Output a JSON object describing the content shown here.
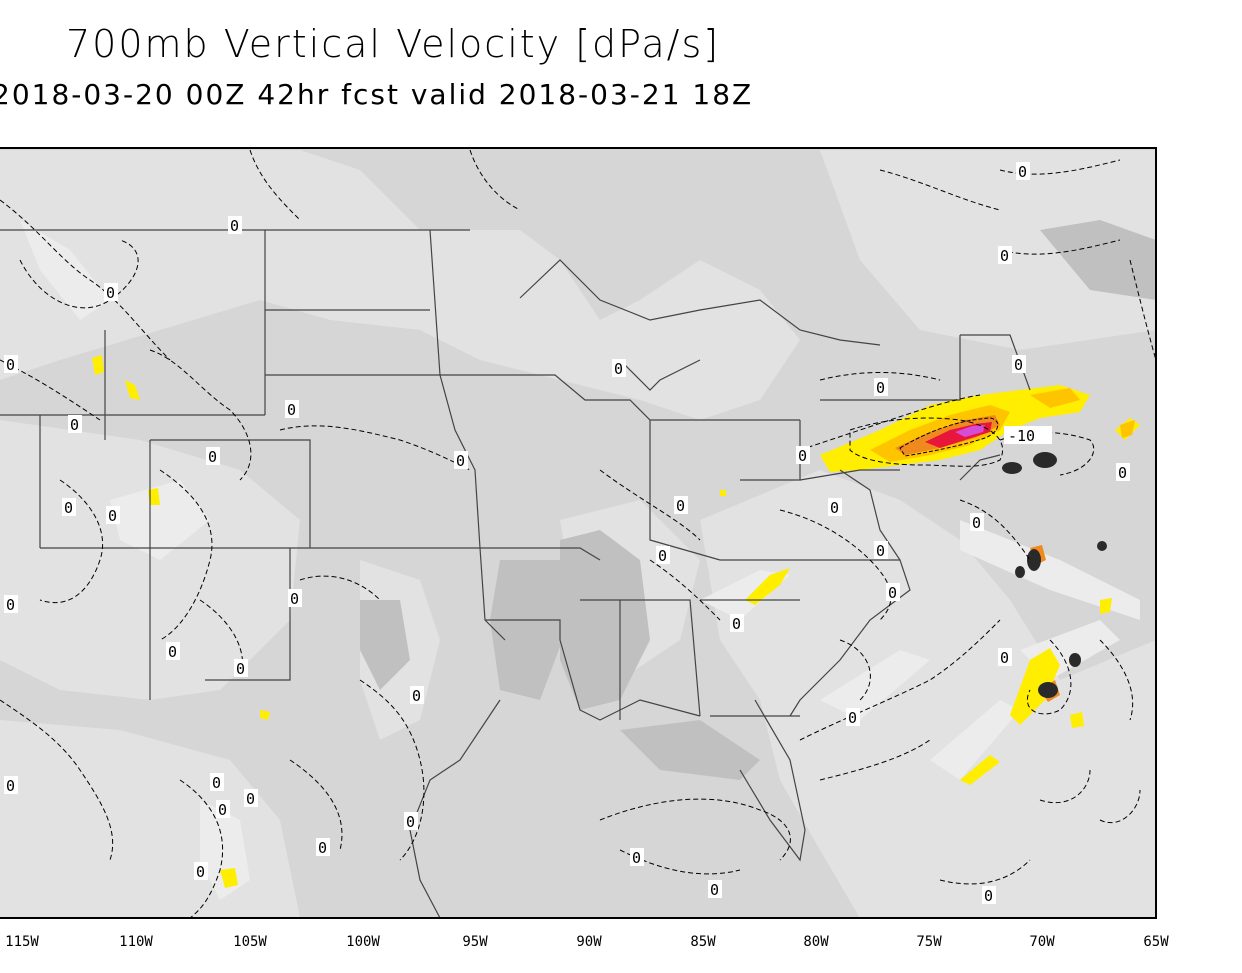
{
  "header": {
    "title": "700mb Vertical Velocity [dPa/s]",
    "subtitle": "2018-03-20 00Z 42hr fcst valid 2018-03-21 18Z"
  },
  "map": {
    "longitude_labels": [
      "115W",
      "110W",
      "105W",
      "100W",
      "95W",
      "90W",
      "85W",
      "80W",
      "75W",
      "70W",
      "65W"
    ],
    "contour_labels": {
      "zero": "0",
      "minus_ten": "-10"
    },
    "colors": {
      "ocean_light": "#e4e4e4",
      "land_gray": "#d2d2d2",
      "dark_gray": "#bdbdbd",
      "yellow": "#ffee00",
      "gold": "#ffc400",
      "orange": "#f08a1e",
      "red": "#e8163a",
      "magenta": "#d64bd8"
    }
  }
}
